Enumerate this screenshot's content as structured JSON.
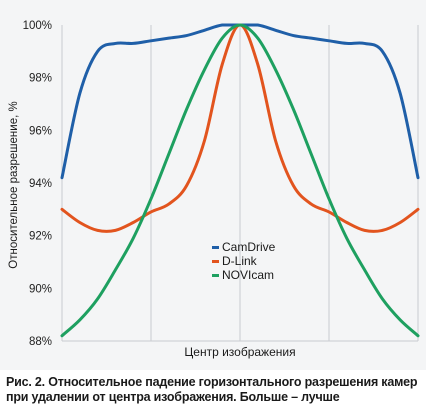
{
  "chart_data": {
    "type": "line",
    "title": "",
    "xlabel": "Центр изображения",
    "ylabel": "Относительное разрешение, %",
    "ylim": [
      88,
      100
    ],
    "yticks": [
      "88%",
      "90%",
      "92%",
      "94%",
      "96%",
      "98%",
      "100%"
    ],
    "ytick_values": [
      88,
      90,
      92,
      94,
      96,
      98,
      100
    ],
    "xlim": [
      -1,
      1
    ],
    "grid": "vertical",
    "legend_position": "center",
    "x": [
      -1.0,
      -0.9,
      -0.8,
      -0.7,
      -0.6,
      -0.5,
      -0.4,
      -0.3,
      -0.2,
      -0.1,
      0.0,
      0.1,
      0.2,
      0.3,
      0.4,
      0.5,
      0.6,
      0.7,
      0.8,
      0.9,
      1.0
    ],
    "series": [
      {
        "name": "CamDrive",
        "color": "#1f5fa8",
        "values": [
          94.2,
          97.4,
          99.0,
          99.3,
          99.3,
          99.4,
          99.5,
          99.6,
          99.8,
          100.0,
          100.0,
          100.0,
          99.8,
          99.6,
          99.5,
          99.4,
          99.3,
          99.3,
          99.0,
          97.4,
          94.2
        ]
      },
      {
        "name": "D-Link",
        "color": "#e2541e",
        "values": [
          93.0,
          92.5,
          92.2,
          92.2,
          92.5,
          92.9,
          93.2,
          93.9,
          95.6,
          98.5,
          100.0,
          98.5,
          95.6,
          93.9,
          93.2,
          92.9,
          92.5,
          92.2,
          92.2,
          92.5,
          93.0
        ]
      },
      {
        "name": "NOVIcam",
        "color": "#1ea060",
        "values": [
          88.2,
          88.8,
          89.6,
          90.7,
          91.9,
          93.4,
          95.1,
          96.8,
          98.3,
          99.5,
          100.0,
          99.5,
          98.3,
          96.8,
          95.1,
          93.4,
          91.9,
          90.7,
          89.6,
          88.8,
          88.2
        ]
      }
    ]
  },
  "caption": "Рис. 2. Относительное падение горизонтального разрешения камер при удалении от центра изображения. Больше – лучше"
}
